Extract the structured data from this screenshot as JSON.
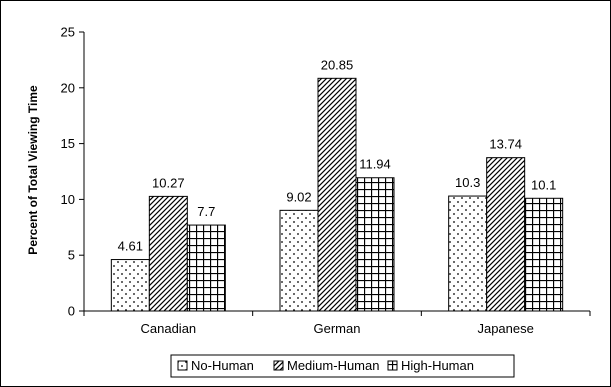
{
  "chart_data": {
    "type": "bar",
    "categories": [
      "Canadian",
      "German",
      "Japanese"
    ],
    "series": [
      {
        "name": "No-Human",
        "values": [
          4.61,
          9.02,
          10.3
        ],
        "pattern": "dots"
      },
      {
        "name": "Medium-Human",
        "values": [
          10.27,
          20.85,
          13.74
        ],
        "pattern": "diagonal"
      },
      {
        "name": "High-Human",
        "values": [
          7.7,
          11.94,
          10.1
        ],
        "pattern": "grid"
      }
    ],
    "data_labels": [
      [
        "4.61",
        "10.27",
        "7.7"
      ],
      [
        "9.02",
        "20.85",
        "11.94"
      ],
      [
        "10.3",
        "13.74",
        "10.1"
      ]
    ],
    "yticks": [
      "0",
      "5",
      "10",
      "15",
      "20",
      "25"
    ],
    "ylim": [
      0,
      25
    ],
    "ylabel": "Percent of Total Viewing Time",
    "xlabel": "",
    "title": "",
    "grid": false,
    "legend_position": "bottom",
    "colors": {
      "bar_fill": "#ffffff",
      "bar_stroke": "#000000",
      "pattern": "#000000",
      "frame": "#000000"
    }
  }
}
